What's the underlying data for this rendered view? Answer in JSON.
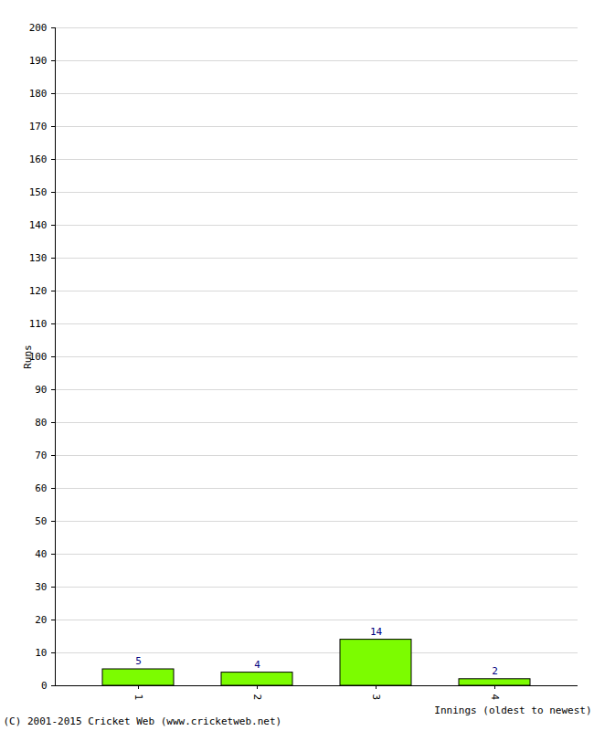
{
  "chart_data": {
    "type": "bar",
    "categories": [
      "1",
      "2",
      "3",
      "4"
    ],
    "values": [
      5,
      4,
      14,
      2
    ],
    "color": "#7cfc00",
    "ylim": [
      0,
      200
    ],
    "yticks": [
      0,
      10,
      20,
      30,
      40,
      50,
      60,
      70,
      80,
      90,
      100,
      110,
      120,
      130,
      140,
      150,
      160,
      170,
      180,
      190,
      200
    ],
    "grid": true,
    "data_labels": true,
    "y_label": "Runs",
    "x_label": "Innings (oldest to newest)",
    "caption": "(C) 2001-2015 Cricket Web (www.cricketweb.net)"
  }
}
